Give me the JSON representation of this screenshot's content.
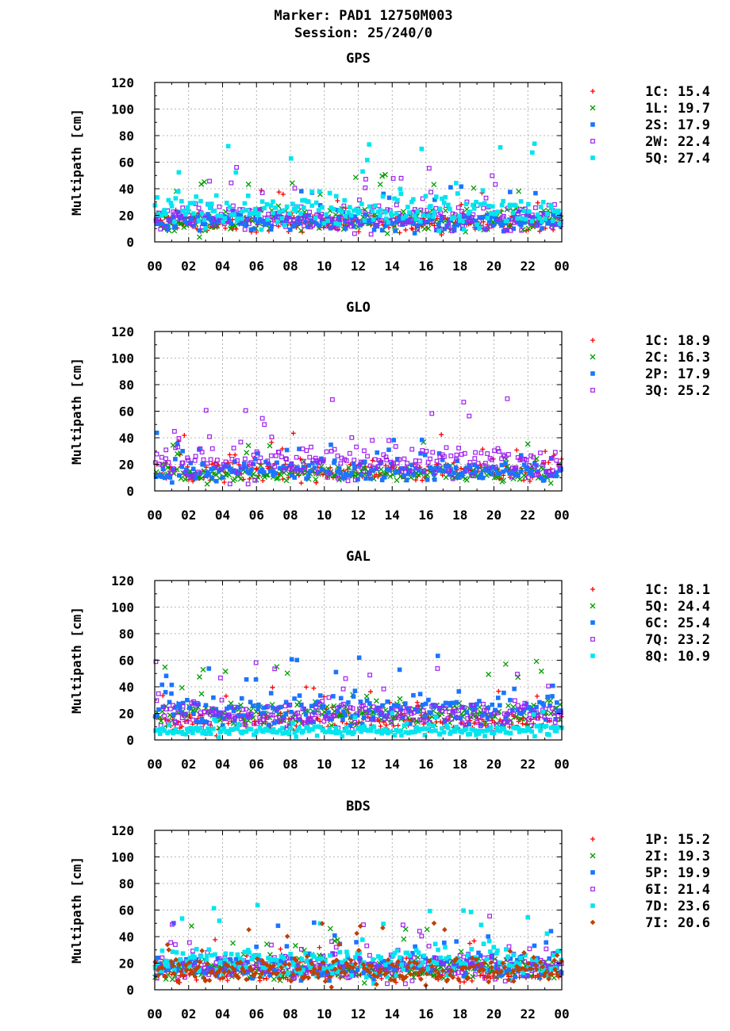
{
  "header": {
    "line1": "Marker: PAD1 12750M003",
    "line2": "Session: 25/240/0"
  },
  "chart_data": [
    {
      "type": "scatter",
      "title": "GPS",
      "ylabel": "Multipath [cm]",
      "xlabel": "",
      "ylim": [
        0,
        120
      ],
      "xlim": [
        0,
        24
      ],
      "x_tick_labels": [
        "00",
        "02",
        "04",
        "06",
        "08",
        "10",
        "12",
        "14",
        "16",
        "18",
        "20",
        "22",
        "00"
      ],
      "y_tick_labels": [
        "0",
        "20",
        "40",
        "60",
        "80",
        "100",
        "120"
      ],
      "grid": true,
      "legend_position": "right",
      "series": [
        {
          "name": "1C",
          "value": "15.4",
          "color": "#ff0000",
          "marker": "plus",
          "median": 14,
          "spread": 5
        },
        {
          "name": "1L",
          "value": "19.7",
          "color": "#009e00",
          "marker": "cross",
          "median": 16,
          "spread": 7
        },
        {
          "name": "2S",
          "value": "17.9",
          "color": "#1a75ff",
          "marker": "filled-square",
          "median": 15,
          "spread": 6
        },
        {
          "name": "2W",
          "value": "22.4",
          "color": "#a020f0",
          "marker": "open-square",
          "median": 19,
          "spread": 8
        },
        {
          "name": "5Q",
          "value": "27.4",
          "color": "#00e5ee",
          "marker": "filled-square",
          "median": 24,
          "spread": 10
        }
      ]
    },
    {
      "type": "scatter",
      "title": "GLO",
      "ylabel": "Multipath [cm]",
      "xlabel": "",
      "ylim": [
        0,
        120
      ],
      "xlim": [
        0,
        24
      ],
      "x_tick_labels": [
        "00",
        "02",
        "04",
        "06",
        "08",
        "10",
        "12",
        "14",
        "16",
        "18",
        "20",
        "22",
        "00"
      ],
      "y_tick_labels": [
        "0",
        "20",
        "40",
        "60",
        "80",
        "100",
        "120"
      ],
      "grid": true,
      "legend_position": "right",
      "series": [
        {
          "name": "1C",
          "value": "18.9",
          "color": "#ff0000",
          "marker": "plus",
          "median": 15,
          "spread": 6
        },
        {
          "name": "2C",
          "value": "16.3",
          "color": "#009e00",
          "marker": "cross",
          "median": 13,
          "spread": 5
        },
        {
          "name": "2P",
          "value": "17.9",
          "color": "#1a75ff",
          "marker": "filled-square",
          "median": 15,
          "spread": 6
        },
        {
          "name": "3Q",
          "value": "25.2",
          "color": "#a020f0",
          "marker": "open-square",
          "median": 22,
          "spread": 10
        }
      ]
    },
    {
      "type": "scatter",
      "title": "GAL",
      "ylabel": "Multipath [cm]",
      "xlabel": "",
      "ylim": [
        0,
        120
      ],
      "xlim": [
        0,
        24
      ],
      "x_tick_labels": [
        "00",
        "02",
        "04",
        "06",
        "08",
        "10",
        "12",
        "14",
        "16",
        "18",
        "20",
        "22",
        "00"
      ],
      "y_tick_labels": [
        "0",
        "20",
        "40",
        "60",
        "80",
        "100",
        "120"
      ],
      "grid": true,
      "legend_position": "right",
      "series": [
        {
          "name": "1C",
          "value": "18.1",
          "color": "#ff0000",
          "marker": "plus",
          "median": 14,
          "spread": 6
        },
        {
          "name": "5Q",
          "value": "24.4",
          "color": "#009e00",
          "marker": "cross",
          "median": 20,
          "spread": 8
        },
        {
          "name": "6C",
          "value": "25.4",
          "color": "#1a75ff",
          "marker": "filled-square",
          "median": 22,
          "spread": 9
        },
        {
          "name": "7Q",
          "value": "23.2",
          "color": "#a020f0",
          "marker": "open-square",
          "median": 19,
          "spread": 8
        },
        {
          "name": "8Q",
          "value": "10.9",
          "color": "#00e5ee",
          "marker": "filled-square",
          "median": 7,
          "spread": 3
        }
      ]
    },
    {
      "type": "scatter",
      "title": "BDS",
      "ylabel": "Multipath [cm]",
      "xlabel": "",
      "ylim": [
        0,
        120
      ],
      "xlim": [
        0,
        24
      ],
      "x_tick_labels": [
        "00",
        "02",
        "04",
        "06",
        "08",
        "10",
        "12",
        "14",
        "16",
        "18",
        "20",
        "22",
        "00"
      ],
      "y_tick_labels": [
        "0",
        "20",
        "40",
        "60",
        "80",
        "100",
        "120"
      ],
      "grid": true,
      "legend_position": "right",
      "series": [
        {
          "name": "1P",
          "value": "15.2",
          "color": "#ff0000",
          "marker": "plus",
          "median": 13,
          "spread": 5
        },
        {
          "name": "2I",
          "value": "19.3",
          "color": "#009e00",
          "marker": "cross",
          "median": 16,
          "spread": 7
        },
        {
          "name": "5P",
          "value": "19.9",
          "color": "#1a75ff",
          "marker": "filled-square",
          "median": 17,
          "spread": 7
        },
        {
          "name": "6I",
          "value": "21.4",
          "color": "#a020f0",
          "marker": "open-square",
          "median": 18,
          "spread": 8
        },
        {
          "name": "7D",
          "value": "23.6",
          "color": "#00e5ee",
          "marker": "filled-square",
          "median": 21,
          "spread": 9
        },
        {
          "name": "7I",
          "value": "20.6",
          "color": "#c04000",
          "marker": "diamond",
          "median": 15,
          "spread": 8
        }
      ]
    }
  ]
}
